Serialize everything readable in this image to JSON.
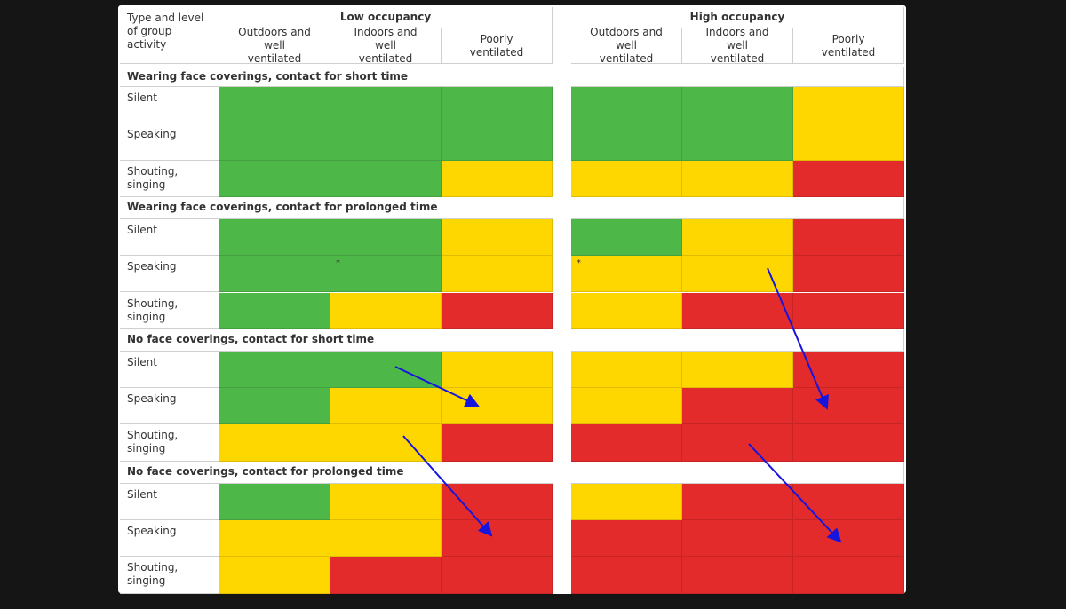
{
  "header": {
    "corner": "Type and level of group activity",
    "groups": [
      {
        "title": "Low occupancy",
        "columns": [
          "Outdoors and well ventilated",
          "Indoors and well ventilated",
          "Poorly ventilated"
        ]
      },
      {
        "title": "High occupancy",
        "columns": [
          "Outdoors and well ventilated",
          "Indoors and well ventilated",
          "Poorly ventilated"
        ]
      }
    ]
  },
  "colors": {
    "G": "#4db848",
    "Y": "#ffd700",
    "R": "#e32b2b"
  },
  "sections": [
    {
      "title": "Wearing face coverings, contact for short time",
      "rows": [
        {
          "label": "Silent",
          "cells": [
            "G",
            "G",
            "G",
            "G",
            "G",
            "Y"
          ]
        },
        {
          "label": "Speaking",
          "cells": [
            "G",
            "G",
            "G",
            "G",
            "G",
            "Y"
          ]
        },
        {
          "label": "Shouting, singing",
          "cells": [
            "G",
            "G",
            "Y",
            "Y",
            "Y",
            "R"
          ]
        }
      ]
    },
    {
      "title": "Wearing face coverings, contact for prolonged time",
      "rows": [
        {
          "label": "Silent",
          "cells": [
            "G",
            "G",
            "Y",
            "G",
            "Y",
            "R"
          ]
        },
        {
          "label": "Speaking",
          "cells": [
            "G",
            "G",
            "Y",
            "Y",
            "Y",
            "R"
          ],
          "notes": [
            {
              "col": 1,
              "text": "*"
            },
            {
              "col": 3,
              "text": "*"
            }
          ]
        },
        {
          "label": "Shouting, singing",
          "cells": [
            "G",
            "Y",
            "R",
            "Y",
            "R",
            "R"
          ]
        }
      ]
    },
    {
      "title": "No face coverings, contact for short time",
      "rows": [
        {
          "label": "Silent",
          "cells": [
            "G",
            "G",
            "Y",
            "Y",
            "Y",
            "R"
          ]
        },
        {
          "label": "Speaking",
          "cells": [
            "G",
            "Y",
            "Y",
            "Y",
            "R",
            "R"
          ]
        },
        {
          "label": "Shouting, singing",
          "cells": [
            "Y",
            "Y",
            "R",
            "R",
            "R",
            "R"
          ]
        }
      ]
    },
    {
      "title": "No face coverings, contact for prolonged time",
      "rows": [
        {
          "label": "Silent",
          "cells": [
            "G",
            "Y",
            "R",
            "Y",
            "R",
            "R"
          ]
        },
        {
          "label": "Speaking",
          "cells": [
            "Y",
            "Y",
            "R",
            "R",
            "R",
            "R"
          ]
        },
        {
          "label": "Shouting, singing",
          "cells": [
            "Y",
            "R",
            "R",
            "R",
            "R",
            "R"
          ]
        }
      ]
    }
  ]
}
